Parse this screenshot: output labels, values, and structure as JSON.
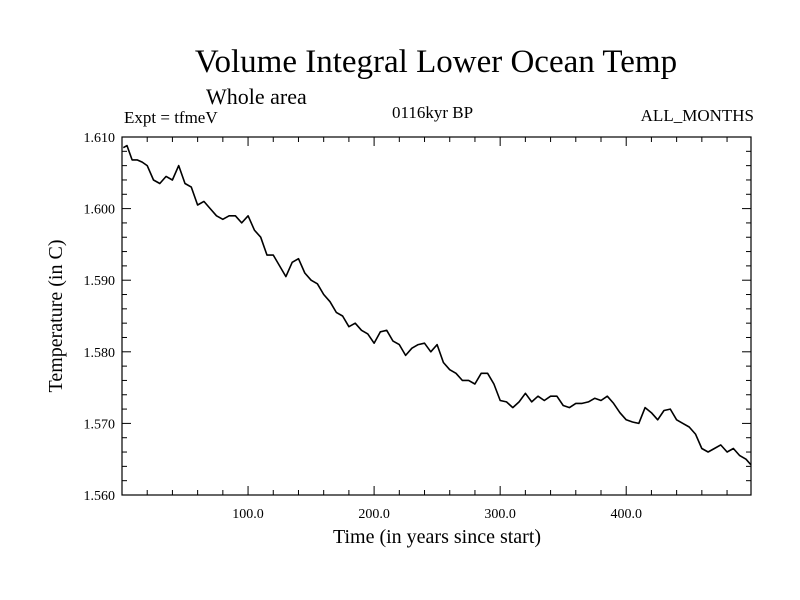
{
  "header": {
    "title": "Volume Integral Lower Ocean Temp",
    "subtitle": "Whole area",
    "experiment": "Expt = tfmeV",
    "period": "0116kyr BP",
    "months": "ALL_MONTHS"
  },
  "chart_data": {
    "type": "line",
    "title": "Volume Integral Lower Ocean Temp",
    "subtitle": "Whole area",
    "xlabel": "Time (in years since start)",
    "ylabel": "Temperature (in C)",
    "xlim": [
      0,
      499
    ],
    "ylim": [
      1.56,
      1.61
    ],
    "x_ticks": [
      100,
      200,
      300,
      400
    ],
    "x_tick_labels": [
      "100.0",
      "200.0",
      "300.0",
      "400.0"
    ],
    "y_ticks": [
      1.56,
      1.57,
      1.58,
      1.59,
      1.6,
      1.61
    ],
    "y_tick_labels": [
      "1.560",
      "1.570",
      "1.580",
      "1.590",
      "1.600",
      "1.610"
    ],
    "grid": false,
    "line_color": "#000000",
    "series": [
      {
        "x": [
          1,
          4,
          8,
          12,
          16,
          20,
          25,
          30,
          35,
          40,
          45,
          50,
          55,
          60,
          65,
          70,
          75,
          80,
          85,
          90,
          95,
          100,
          105,
          110,
          115,
          120,
          125,
          130,
          135,
          140,
          145,
          150,
          155,
          160,
          165,
          170,
          175,
          180,
          185,
          190,
          195,
          200,
          205,
          210,
          215,
          220,
          225,
          230,
          235,
          240,
          245,
          250,
          255,
          260,
          265,
          270,
          275,
          280,
          285,
          290,
          295,
          300,
          305,
          310,
          315,
          320,
          325,
          330,
          335,
          340,
          345,
          350,
          355,
          360,
          365,
          370,
          375,
          380,
          385,
          390,
          395,
          400,
          405,
          410,
          415,
          420,
          425,
          430,
          435,
          440,
          445,
          450,
          455,
          460,
          465,
          470,
          475,
          480,
          485,
          490,
          495,
          499
        ],
        "values": [
          1.6085,
          1.6088,
          1.6068,
          1.6068,
          1.6065,
          1.606,
          1.604,
          1.6035,
          1.6045,
          1.604,
          1.606,
          1.6035,
          1.603,
          1.6005,
          1.601,
          1.6,
          1.599,
          1.5985,
          1.599,
          1.599,
          1.598,
          1.599,
          1.597,
          1.596,
          1.5935,
          1.5935,
          1.592,
          1.5905,
          1.5925,
          1.593,
          1.591,
          1.59,
          1.5895,
          1.588,
          1.587,
          1.5855,
          1.585,
          1.5835,
          1.584,
          1.583,
          1.5825,
          1.5812,
          1.5828,
          1.583,
          1.5815,
          1.581,
          1.5795,
          1.5805,
          1.581,
          1.5812,
          1.58,
          1.581,
          1.5785,
          1.5775,
          1.577,
          1.576,
          1.576,
          1.5755,
          1.577,
          1.577,
          1.5755,
          1.5732,
          1.573,
          1.5722,
          1.573,
          1.5742,
          1.573,
          1.5738,
          1.5732,
          1.5738,
          1.5738,
          1.5725,
          1.5722,
          1.5728,
          1.5728,
          1.573,
          1.5735,
          1.5732,
          1.5738,
          1.5728,
          1.5715,
          1.5705,
          1.5702,
          1.57,
          1.5722,
          1.5715,
          1.5705,
          1.5718,
          1.572,
          1.5705,
          1.57,
          1.5695,
          1.5685,
          1.5665,
          1.566,
          1.5665,
          1.567,
          1.566,
          1.5665,
          1.5655,
          1.565,
          1.5642
        ]
      }
    ]
  }
}
